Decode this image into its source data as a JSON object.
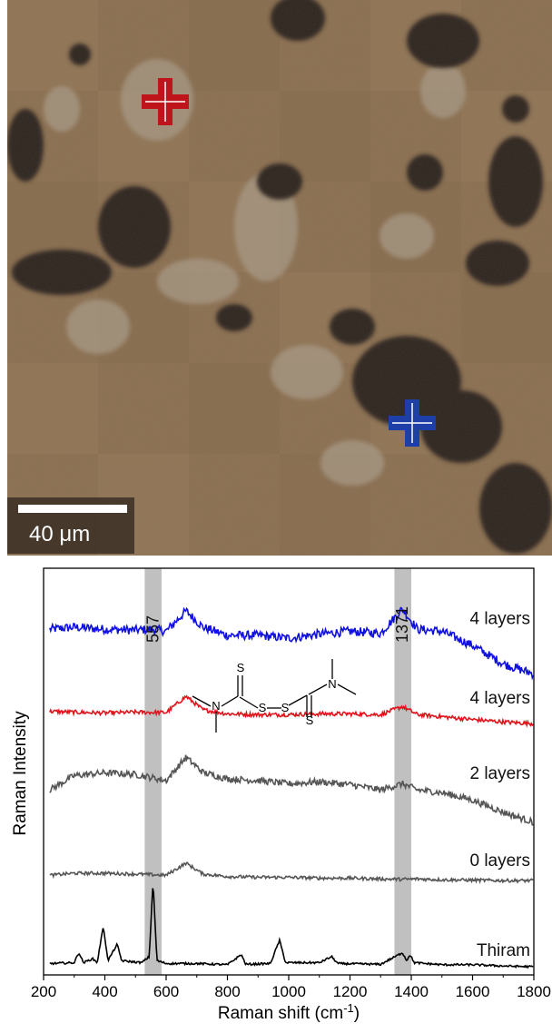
{
  "micrograph": {
    "scale_bar_label": "40 μm",
    "markers": [
      {
        "name": "red-marker",
        "color": "#c0141c"
      },
      {
        "name": "blue-marker",
        "color": "#1f3fa8"
      }
    ],
    "colors": {
      "background": "#8a6d4e",
      "particles": "#2a221d",
      "crystals": "#a89a86"
    }
  },
  "chart_data": {
    "type": "line",
    "xlabel": "Raman shift (cm",
    "xlabel_sup": "-1",
    "xlabel_close": ")",
    "ylabel": "Raman Intensity",
    "xlim": [
      200,
      1800
    ],
    "x_ticks": [
      200,
      400,
      600,
      800,
      1000,
      1200,
      1400,
      1600,
      1800
    ],
    "highlight_bands": [
      {
        "center": 557,
        "label": "557",
        "range": [
          530,
          585
        ]
      },
      {
        "center": 1371,
        "label": "1371",
        "range": [
          1345,
          1400
        ]
      }
    ],
    "series": [
      {
        "name": "4 layers",
        "color": "#1010e0",
        "baseline": 0.84,
        "points": [
          [
            220,
            0.85
          ],
          [
            300,
            0.855
          ],
          [
            400,
            0.85
          ],
          [
            500,
            0.848
          ],
          [
            557,
            0.85
          ],
          [
            600,
            0.845
          ],
          [
            665,
            0.895
          ],
          [
            720,
            0.855
          ],
          [
            800,
            0.835
          ],
          [
            900,
            0.835
          ],
          [
            1000,
            0.828
          ],
          [
            1100,
            0.838
          ],
          [
            1200,
            0.845
          ],
          [
            1300,
            0.84
          ],
          [
            1371,
            0.9
          ],
          [
            1420,
            0.85
          ],
          [
            1500,
            0.845
          ],
          [
            1600,
            0.81
          ],
          [
            1700,
            0.765
          ],
          [
            1800,
            0.74
          ]
        ]
      },
      {
        "name": "4 layers",
        "color": "#e0141c",
        "baseline": 0.645,
        "points": [
          [
            220,
            0.648
          ],
          [
            300,
            0.646
          ],
          [
            400,
            0.644
          ],
          [
            500,
            0.646
          ],
          [
            600,
            0.645
          ],
          [
            665,
            0.685
          ],
          [
            720,
            0.652
          ],
          [
            800,
            0.642
          ],
          [
            900,
            0.64
          ],
          [
            1000,
            0.64
          ],
          [
            1100,
            0.642
          ],
          [
            1200,
            0.642
          ],
          [
            1300,
            0.64
          ],
          [
            1371,
            0.66
          ],
          [
            1420,
            0.64
          ],
          [
            1500,
            0.635
          ],
          [
            1600,
            0.628
          ],
          [
            1700,
            0.622
          ],
          [
            1800,
            0.618
          ]
        ]
      },
      {
        "name": "2 layers",
        "color": "#555555",
        "baseline": 0.46,
        "points": [
          [
            220,
            0.455
          ],
          [
            300,
            0.49
          ],
          [
            400,
            0.497
          ],
          [
            500,
            0.493
          ],
          [
            600,
            0.478
          ],
          [
            665,
            0.535
          ],
          [
            720,
            0.498
          ],
          [
            800,
            0.482
          ],
          [
            900,
            0.478
          ],
          [
            1000,
            0.47
          ],
          [
            1100,
            0.475
          ],
          [
            1200,
            0.468
          ],
          [
            1300,
            0.455
          ],
          [
            1371,
            0.47
          ],
          [
            1420,
            0.455
          ],
          [
            1500,
            0.448
          ],
          [
            1600,
            0.43
          ],
          [
            1700,
            0.4
          ],
          [
            1800,
            0.375
          ]
        ]
      },
      {
        "name": "0 layers",
        "color": "#555555",
        "baseline": 0.245,
        "points": [
          [
            220,
            0.245
          ],
          [
            300,
            0.25
          ],
          [
            400,
            0.25
          ],
          [
            500,
            0.248
          ],
          [
            600,
            0.245
          ],
          [
            665,
            0.275
          ],
          [
            720,
            0.248
          ],
          [
            800,
            0.242
          ],
          [
            900,
            0.24
          ],
          [
            1000,
            0.24
          ],
          [
            1100,
            0.238
          ],
          [
            1200,
            0.238
          ],
          [
            1300,
            0.236
          ],
          [
            1371,
            0.235
          ],
          [
            1420,
            0.236
          ],
          [
            1500,
            0.234
          ],
          [
            1600,
            0.233
          ],
          [
            1700,
            0.232
          ],
          [
            1800,
            0.232
          ]
        ]
      },
      {
        "name": "Thiram",
        "color": "#000000",
        "baseline": 0.025,
        "points": [
          [
            220,
            0.028
          ],
          [
            300,
            0.03
          ],
          [
            315,
            0.055
          ],
          [
            330,
            0.03
          ],
          [
            360,
            0.04
          ],
          [
            375,
            0.03
          ],
          [
            395,
            0.12
          ],
          [
            410,
            0.035
          ],
          [
            440,
            0.075
          ],
          [
            455,
            0.035
          ],
          [
            520,
            0.03
          ],
          [
            545,
            0.045
          ],
          [
            557,
            0.23
          ],
          [
            570,
            0.035
          ],
          [
            600,
            0.028
          ],
          [
            700,
            0.028
          ],
          [
            800,
            0.025
          ],
          [
            845,
            0.05
          ],
          [
            860,
            0.026
          ],
          [
            940,
            0.028
          ],
          [
            970,
            0.085
          ],
          [
            990,
            0.03
          ],
          [
            1100,
            0.03
          ],
          [
            1140,
            0.045
          ],
          [
            1160,
            0.028
          ],
          [
            1300,
            0.026
          ],
          [
            1360,
            0.05
          ],
          [
            1371,
            0.055
          ],
          [
            1385,
            0.035
          ],
          [
            1395,
            0.05
          ],
          [
            1410,
            0.03
          ],
          [
            1500,
            0.025
          ],
          [
            1600,
            0.025
          ],
          [
            1700,
            0.022
          ],
          [
            1800,
            0.02
          ]
        ]
      }
    ],
    "molecule": {
      "atoms": [
        "S",
        "N",
        "S",
        "S",
        "N",
        "S"
      ]
    }
  }
}
